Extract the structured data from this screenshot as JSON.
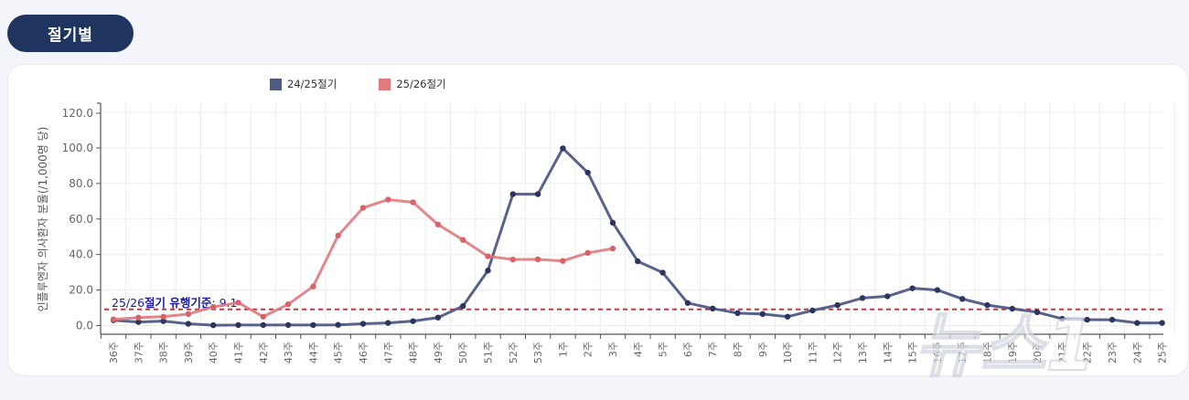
{
  "header": {
    "tab_label": "절기별"
  },
  "legend": {
    "items": [
      {
        "label": "24/25절기",
        "color": "#4f5b85"
      },
      {
        "label": "25/26절기",
        "color": "#e07a80"
      }
    ]
  },
  "threshold": {
    "label_prefix": "25/26",
    "label_bold": "절기 유행기준",
    "label_suffix": ": 9.1",
    "value": 9.1,
    "color": "#c0393f"
  },
  "watermark": {
    "text": "뉴스1"
  },
  "chart_data": {
    "type": "line",
    "title": "",
    "xlabel": "",
    "ylabel": "인플루엔자 의사환자 분율(/1,000명 당)",
    "ylim": [
      -5,
      122
    ],
    "yticks": [
      "0.0",
      "20.0",
      "40.0",
      "60.0",
      "80.0",
      "100.0",
      "120.0"
    ],
    "grid": true,
    "legend_position": "top",
    "categories": [
      "36주",
      "37주",
      "38주",
      "39주",
      "40주",
      "41주",
      "42주",
      "43주",
      "44주",
      "45주",
      "46주",
      "47주",
      "48주",
      "49주",
      "50주",
      "51주",
      "52주",
      "53주",
      "1주",
      "2주",
      "3주",
      "4주",
      "5주",
      "6주",
      "7주",
      "8주",
      "9주",
      "10주",
      "11주",
      "12주",
      "13주",
      "14주",
      "15주",
      "16주",
      "17주",
      "18주",
      "19주",
      "20주",
      "21주",
      "22주",
      "23주",
      "24주",
      "25주"
    ],
    "series": [
      {
        "name": "24/25절기",
        "color": "#4f5b85",
        "values": [
          3.0,
          2.0,
          2.5,
          1.0,
          0.2,
          0.3,
          0.3,
          0.3,
          0.3,
          0.4,
          1.0,
          1.5,
          2.5,
          4.5,
          11.0,
          31.0,
          74.0,
          74.0,
          99.8,
          86.1,
          57.9,
          36.2,
          29.8,
          12.7,
          9.6,
          7.0,
          6.5,
          5.0,
          8.5,
          11.5,
          15.5,
          16.5,
          21.0,
          20.0,
          15.0,
          11.5,
          9.5,
          7.5,
          3.8,
          3.3,
          3.3,
          1.5,
          1.5
        ]
      },
      {
        "name": "25/26절기",
        "color": "#e07a80",
        "values": [
          3.5,
          4.5,
          5.0,
          6.5,
          10.5,
          12.9,
          5.0,
          12.0,
          22.0,
          50.7,
          66.3,
          70.9,
          69.4,
          56.9,
          48.2,
          39.0,
          37.2,
          37.3,
          36.4,
          40.9,
          43.4
        ]
      }
    ],
    "annotations": [
      {
        "type": "hline",
        "y": 9.1,
        "style": "dashed",
        "label": "25/26절기 유행기준: 9.1"
      }
    ]
  }
}
